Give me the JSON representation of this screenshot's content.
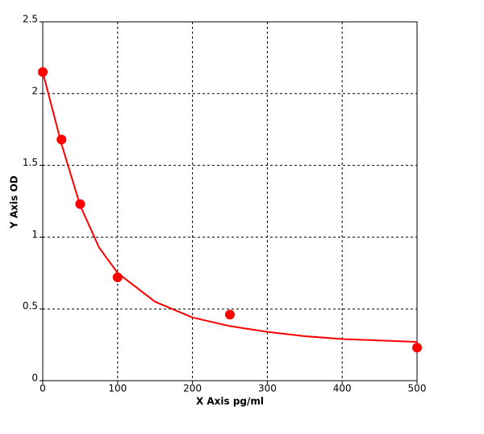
{
  "chart_data": {
    "type": "scatter",
    "x_label": "X Axis pg/ml",
    "y_label": "Y Axis OD",
    "xlim": [
      0,
      500
    ],
    "ylim": [
      0,
      2.5
    ],
    "xticks": [
      0,
      100,
      200,
      300,
      400,
      500
    ],
    "yticks": [
      0,
      0.5,
      1,
      1.5,
      2,
      2.5
    ],
    "grid": true,
    "series": [
      {
        "type": "scatter",
        "color": "#ff0000",
        "x": [
          0,
          25,
          50,
          100,
          250,
          500
        ],
        "values": [
          2.15,
          1.68,
          1.23,
          0.72,
          0.46,
          0.23
        ]
      },
      {
        "type": "line",
        "color": "#ff0000",
        "x": [
          0,
          10,
          25,
          50,
          75,
          100,
          150,
          200,
          250,
          300,
          350,
          400,
          450,
          500
        ],
        "values": [
          2.15,
          1.95,
          1.65,
          1.22,
          0.93,
          0.75,
          0.55,
          0.44,
          0.38,
          0.34,
          0.31,
          0.29,
          0.28,
          0.27
        ]
      }
    ]
  }
}
